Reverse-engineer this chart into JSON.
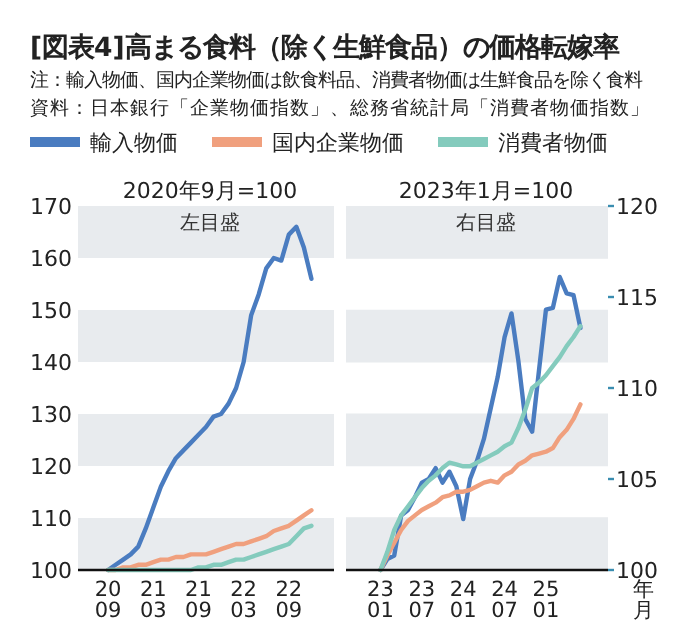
{
  "chart_data": [
    {
      "type": "line",
      "title": "[図表4]高まる食料（除く生鮮食品）の価格転嫁率",
      "annotations": [
        "注：輸入物価、国内企業物価は飲食料品、消費者物価は生鮮食品を除く食料",
        "資料：日本銀行「企業物価指数」、総務省統計局「消費者物価指数」"
      ],
      "subtitle": "2020年9月=100",
      "ylabel": "左目盛",
      "x": [
        "2020-09",
        "2020-10",
        "2020-11",
        "2020-12",
        "2021-01",
        "2021-02",
        "2021-03",
        "2021-04",
        "2021-05",
        "2021-06",
        "2021-07",
        "2021-08",
        "2021-09",
        "2021-10",
        "2021-11",
        "2021-12",
        "2022-01",
        "2022-02",
        "2022-03",
        "2022-04",
        "2022-05",
        "2022-06",
        "2022-07",
        "2022-08",
        "2022-09",
        "2022-10",
        "2022-11",
        "2022-12"
      ],
      "series": [
        {
          "name": "輸入物価",
          "color": "#4a7cc0",
          "values": [
            100,
            101,
            102,
            103,
            104.5,
            108,
            112,
            116,
            119,
            121.5,
            123,
            124.5,
            126,
            127.5,
            129.5,
            130,
            132,
            135,
            140,
            149,
            153,
            158,
            160,
            159.5,
            164.5,
            166,
            162,
            156
          ]
        },
        {
          "name": "国内企業物価",
          "color": "#f0a07e",
          "values": [
            100,
            100,
            100.5,
            100.5,
            101,
            101,
            101.5,
            102,
            102,
            102.5,
            102.5,
            103,
            103,
            103,
            103.5,
            104,
            104.5,
            105,
            105,
            105.5,
            106,
            106.5,
            107.5,
            108,
            108.5,
            109.5,
            110.5,
            111.5
          ]
        },
        {
          "name": "消費者物価",
          "color": "#84cbbd",
          "values": [
            100,
            100,
            100,
            100,
            100,
            100,
            100,
            100,
            100,
            100,
            100,
            100,
            100.5,
            100.5,
            101,
            101,
            101.5,
            102,
            102,
            102.5,
            103,
            103.5,
            104,
            104.5,
            105,
            106.5,
            108,
            108.5
          ]
        }
      ],
      "xlim": [
        "2020-05",
        "2023-03"
      ],
      "xticks": [
        {
          "value": "2020-09",
          "label": "20\n09"
        },
        {
          "value": "2021-03",
          "label": "21\n03"
        },
        {
          "value": "2021-09",
          "label": "21\n09"
        },
        {
          "value": "2022-03",
          "label": "22\n03"
        },
        {
          "value": "2022-09",
          "label": "22\n09"
        }
      ],
      "ylim": [
        100,
        170
      ],
      "yticks": [
        100,
        110,
        120,
        130,
        140,
        150,
        160,
        170
      ],
      "bands": [
        {
          "axis": "y",
          "from": 100,
          "to": 110,
          "color": "#e8ebee"
        },
        {
          "axis": "y",
          "from": 120,
          "to": 130,
          "color": "#e8ebee"
        },
        {
          "axis": "y",
          "from": 140,
          "to": 150,
          "color": "#e8ebee"
        },
        {
          "axis": "y",
          "from": 160,
          "to": 170,
          "color": "#e8ebee"
        }
      ],
      "legend": "top"
    },
    {
      "type": "line",
      "subtitle": "2023年1月=100",
      "ylabel": "右目盛",
      "xlabel": "年月",
      "x": [
        "2023-01",
        "2023-02",
        "2023-03",
        "2023-04",
        "2023-05",
        "2023-06",
        "2023-07",
        "2023-08",
        "2023-09",
        "2023-10",
        "2023-11",
        "2023-12",
        "2024-01",
        "2024-02",
        "2024-03",
        "2024-04",
        "2024-05",
        "2024-06",
        "2024-07",
        "2024-08",
        "2024-09",
        "2024-10",
        "2024-11",
        "2024-12",
        "2025-01",
        "2025-02",
        "2025-03",
        "2025-04",
        "2025-05",
        "2025-06"
      ],
      "series": [
        {
          "color": "#4a7cc0",
          "values": [
            100,
            100.6,
            100.8,
            103,
            103.3,
            104,
            104.8,
            105,
            105.6,
            104.8,
            105.4,
            104.6,
            102.8,
            105,
            106,
            107.2,
            108.9,
            110.6,
            112.8,
            114.1,
            111.5,
            108.3,
            107.6,
            111,
            114.3,
            114.4,
            116.1,
            115.2,
            115.1,
            113.3
          ]
        },
        {
          "color": "#f0a07e",
          "values": [
            100,
            100.8,
            101.5,
            102.2,
            102.7,
            103,
            103.3,
            103.5,
            103.7,
            104,
            104.1,
            104.3,
            104.3,
            104.4,
            104.6,
            104.8,
            104.9,
            104.8,
            105.2,
            105.4,
            105.8,
            106,
            106.3,
            106.4,
            106.5,
            106.7,
            107.3,
            107.7,
            108.3,
            109.1
          ]
        },
        {
          "color": "#84cbbd",
          "values": [
            100,
            101,
            102.2,
            103,
            103.5,
            104,
            104.5,
            104.9,
            105.2,
            105.6,
            105.9,
            105.8,
            105.7,
            105.7,
            105.9,
            106.1,
            106.3,
            106.5,
            106.8,
            107,
            107.8,
            108.8,
            110,
            110.3,
            110.7,
            111.2,
            111.7,
            112.3,
            112.8,
            113.4
          ]
        }
      ],
      "xlim": [
        "2022-08",
        "2025-10"
      ],
      "xticks": [
        {
          "value": "2023-01",
          "label": "23\n01"
        },
        {
          "value": "2023-07",
          "label": "23\n07"
        },
        {
          "value": "2024-01",
          "label": "24\n01"
        },
        {
          "value": "2024-07",
          "label": "24\n07"
        },
        {
          "value": "2025-01",
          "label": "25\n01"
        }
      ],
      "ylim": [
        100,
        120
      ],
      "yticks": [
        100,
        105,
        110,
        115,
        120
      ],
      "bands": [
        {
          "axis": "y",
          "from": 100,
          "to": 102.9,
          "color": "#e8ebee"
        },
        {
          "axis": "y",
          "from": 105.7,
          "to": 108.6,
          "color": "#e8ebee"
        },
        {
          "axis": "y",
          "from": 111.4,
          "to": 114.3,
          "color": "#e8ebee"
        },
        {
          "axis": "y",
          "from": 117.1,
          "to": 120,
          "color": "#e8ebee"
        }
      ]
    }
  ]
}
